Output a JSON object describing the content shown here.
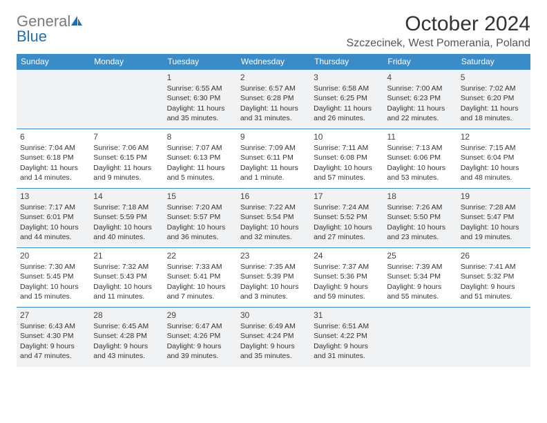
{
  "brand": {
    "part1": "General",
    "part2": "Blue"
  },
  "title": "October 2024",
  "location": "Szczecinek, West Pomerania, Poland",
  "colors": {
    "header_bg": "#3b8bc9",
    "header_text": "#ffffff",
    "row_alt_bg": "#f1f2f3",
    "border": "#3b8bc9",
    "brand_gray": "#7a7a7a",
    "brand_blue": "#1f6fb2"
  },
  "day_headers": [
    "Sunday",
    "Monday",
    "Tuesday",
    "Wednesday",
    "Thursday",
    "Friday",
    "Saturday"
  ],
  "weeks": [
    [
      null,
      null,
      {
        "n": "1",
        "sr": "Sunrise: 6:55 AM",
        "ss": "Sunset: 6:30 PM",
        "d1": "Daylight: 11 hours",
        "d2": "and 35 minutes."
      },
      {
        "n": "2",
        "sr": "Sunrise: 6:57 AM",
        "ss": "Sunset: 6:28 PM",
        "d1": "Daylight: 11 hours",
        "d2": "and 31 minutes."
      },
      {
        "n": "3",
        "sr": "Sunrise: 6:58 AM",
        "ss": "Sunset: 6:25 PM",
        "d1": "Daylight: 11 hours",
        "d2": "and 26 minutes."
      },
      {
        "n": "4",
        "sr": "Sunrise: 7:00 AM",
        "ss": "Sunset: 6:23 PM",
        "d1": "Daylight: 11 hours",
        "d2": "and 22 minutes."
      },
      {
        "n": "5",
        "sr": "Sunrise: 7:02 AM",
        "ss": "Sunset: 6:20 PM",
        "d1": "Daylight: 11 hours",
        "d2": "and 18 minutes."
      }
    ],
    [
      {
        "n": "6",
        "sr": "Sunrise: 7:04 AM",
        "ss": "Sunset: 6:18 PM",
        "d1": "Daylight: 11 hours",
        "d2": "and 14 minutes."
      },
      {
        "n": "7",
        "sr": "Sunrise: 7:06 AM",
        "ss": "Sunset: 6:15 PM",
        "d1": "Daylight: 11 hours",
        "d2": "and 9 minutes."
      },
      {
        "n": "8",
        "sr": "Sunrise: 7:07 AM",
        "ss": "Sunset: 6:13 PM",
        "d1": "Daylight: 11 hours",
        "d2": "and 5 minutes."
      },
      {
        "n": "9",
        "sr": "Sunrise: 7:09 AM",
        "ss": "Sunset: 6:11 PM",
        "d1": "Daylight: 11 hours",
        "d2": "and 1 minute."
      },
      {
        "n": "10",
        "sr": "Sunrise: 7:11 AM",
        "ss": "Sunset: 6:08 PM",
        "d1": "Daylight: 10 hours",
        "d2": "and 57 minutes."
      },
      {
        "n": "11",
        "sr": "Sunrise: 7:13 AM",
        "ss": "Sunset: 6:06 PM",
        "d1": "Daylight: 10 hours",
        "d2": "and 53 minutes."
      },
      {
        "n": "12",
        "sr": "Sunrise: 7:15 AM",
        "ss": "Sunset: 6:04 PM",
        "d1": "Daylight: 10 hours",
        "d2": "and 48 minutes."
      }
    ],
    [
      {
        "n": "13",
        "sr": "Sunrise: 7:17 AM",
        "ss": "Sunset: 6:01 PM",
        "d1": "Daylight: 10 hours",
        "d2": "and 44 minutes."
      },
      {
        "n": "14",
        "sr": "Sunrise: 7:18 AM",
        "ss": "Sunset: 5:59 PM",
        "d1": "Daylight: 10 hours",
        "d2": "and 40 minutes."
      },
      {
        "n": "15",
        "sr": "Sunrise: 7:20 AM",
        "ss": "Sunset: 5:57 PM",
        "d1": "Daylight: 10 hours",
        "d2": "and 36 minutes."
      },
      {
        "n": "16",
        "sr": "Sunrise: 7:22 AM",
        "ss": "Sunset: 5:54 PM",
        "d1": "Daylight: 10 hours",
        "d2": "and 32 minutes."
      },
      {
        "n": "17",
        "sr": "Sunrise: 7:24 AM",
        "ss": "Sunset: 5:52 PM",
        "d1": "Daylight: 10 hours",
        "d2": "and 27 minutes."
      },
      {
        "n": "18",
        "sr": "Sunrise: 7:26 AM",
        "ss": "Sunset: 5:50 PM",
        "d1": "Daylight: 10 hours",
        "d2": "and 23 minutes."
      },
      {
        "n": "19",
        "sr": "Sunrise: 7:28 AM",
        "ss": "Sunset: 5:47 PM",
        "d1": "Daylight: 10 hours",
        "d2": "and 19 minutes."
      }
    ],
    [
      {
        "n": "20",
        "sr": "Sunrise: 7:30 AM",
        "ss": "Sunset: 5:45 PM",
        "d1": "Daylight: 10 hours",
        "d2": "and 15 minutes."
      },
      {
        "n": "21",
        "sr": "Sunrise: 7:32 AM",
        "ss": "Sunset: 5:43 PM",
        "d1": "Daylight: 10 hours",
        "d2": "and 11 minutes."
      },
      {
        "n": "22",
        "sr": "Sunrise: 7:33 AM",
        "ss": "Sunset: 5:41 PM",
        "d1": "Daylight: 10 hours",
        "d2": "and 7 minutes."
      },
      {
        "n": "23",
        "sr": "Sunrise: 7:35 AM",
        "ss": "Sunset: 5:39 PM",
        "d1": "Daylight: 10 hours",
        "d2": "and 3 minutes."
      },
      {
        "n": "24",
        "sr": "Sunrise: 7:37 AM",
        "ss": "Sunset: 5:36 PM",
        "d1": "Daylight: 9 hours",
        "d2": "and 59 minutes."
      },
      {
        "n": "25",
        "sr": "Sunrise: 7:39 AM",
        "ss": "Sunset: 5:34 PM",
        "d1": "Daylight: 9 hours",
        "d2": "and 55 minutes."
      },
      {
        "n": "26",
        "sr": "Sunrise: 7:41 AM",
        "ss": "Sunset: 5:32 PM",
        "d1": "Daylight: 9 hours",
        "d2": "and 51 minutes."
      }
    ],
    [
      {
        "n": "27",
        "sr": "Sunrise: 6:43 AM",
        "ss": "Sunset: 4:30 PM",
        "d1": "Daylight: 9 hours",
        "d2": "and 47 minutes."
      },
      {
        "n": "28",
        "sr": "Sunrise: 6:45 AM",
        "ss": "Sunset: 4:28 PM",
        "d1": "Daylight: 9 hours",
        "d2": "and 43 minutes."
      },
      {
        "n": "29",
        "sr": "Sunrise: 6:47 AM",
        "ss": "Sunset: 4:26 PM",
        "d1": "Daylight: 9 hours",
        "d2": "and 39 minutes."
      },
      {
        "n": "30",
        "sr": "Sunrise: 6:49 AM",
        "ss": "Sunset: 4:24 PM",
        "d1": "Daylight: 9 hours",
        "d2": "and 35 minutes."
      },
      {
        "n": "31",
        "sr": "Sunrise: 6:51 AM",
        "ss": "Sunset: 4:22 PM",
        "d1": "Daylight: 9 hours",
        "d2": "and 31 minutes."
      },
      null,
      null
    ]
  ]
}
